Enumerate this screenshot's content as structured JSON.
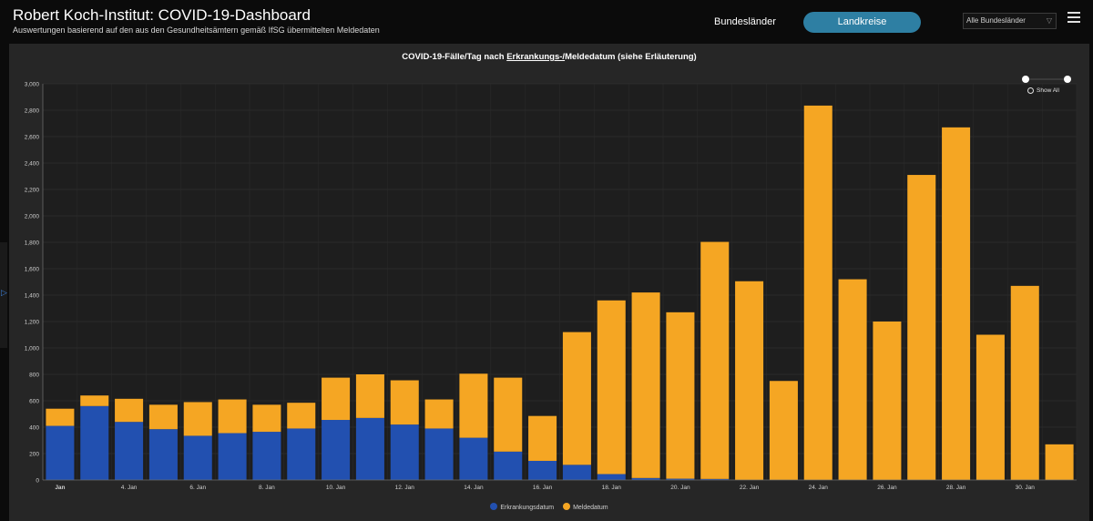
{
  "header": {
    "title": "Robert Koch-Institut: COVID-19-Dashboard",
    "subtitle": "Auswertungen basierend auf den aus den Gesundheitsämtern gemäß IfSG übermittelten Meldedaten",
    "tab_bundeslaender": "Bundesländer",
    "tab_landkreise": "Landkreise",
    "select_value": "Alle Bundesländer"
  },
  "zoom": {
    "show_all_label": "Show All"
  },
  "chart_data": {
    "type": "bar",
    "stacked": true,
    "title_prefix": "COVID-19-Fälle/Tag nach ",
    "title_underlined": "Erkrankungs-/",
    "title_suffix": "Meldedatum (siehe Erläuterung)",
    "xlabel": "",
    "ylabel": "",
    "ylim": [
      0,
      3000
    ],
    "yticks": [
      0,
      200,
      400,
      600,
      800,
      1000,
      1200,
      1400,
      1600,
      1800,
      2000,
      2200,
      2400,
      2600,
      2800,
      3000
    ],
    "ytick_labels": [
      "0",
      "200",
      "400",
      "600",
      "800",
      "1,000",
      "1,200",
      "1,400",
      "1,600",
      "1,800",
      "2,000",
      "2,200",
      "2,400",
      "2,600",
      "2,800",
      "3,000"
    ],
    "x_tick_labels": [
      {
        "index": 0,
        "label": "Jan"
      },
      {
        "index": 2,
        "label": "4. Jan"
      },
      {
        "index": 4,
        "label": "6. Jan"
      },
      {
        "index": 6,
        "label": "8. Jan"
      },
      {
        "index": 8,
        "label": "10. Jan"
      },
      {
        "index": 10,
        "label": "12. Jan"
      },
      {
        "index": 12,
        "label": "14. Jan"
      },
      {
        "index": 14,
        "label": "16. Jan"
      },
      {
        "index": 16,
        "label": "18. Jan"
      },
      {
        "index": 18,
        "label": "20. Jan"
      },
      {
        "index": 20,
        "label": "22. Jan"
      },
      {
        "index": 22,
        "label": "24. Jan"
      },
      {
        "index": 24,
        "label": "26. Jan"
      },
      {
        "index": 26,
        "label": "28. Jan"
      },
      {
        "index": 28,
        "label": "30. Jan"
      }
    ],
    "grid": true,
    "legend_position": "bottom",
    "series": [
      {
        "name": "Erkrankungsdatum",
        "color": "#2250b0",
        "values": [
          410,
          560,
          440,
          385,
          335,
          355,
          365,
          390,
          455,
          470,
          420,
          390,
          320,
          215,
          145,
          115,
          45,
          15,
          10,
          8,
          0,
          0,
          0,
          0,
          0,
          0,
          0,
          0,
          0,
          0
        ]
      },
      {
        "name": "Meldedatum",
        "color": "#f5a623",
        "values": [
          130,
          80,
          175,
          185,
          255,
          255,
          205,
          195,
          320,
          330,
          335,
          220,
          485,
          560,
          340,
          1005,
          1315,
          1405,
          1260,
          1795,
          1505,
          750,
          2835,
          1520,
          1200,
          2310,
          2670,
          1100,
          1470,
          270
        ]
      }
    ]
  }
}
